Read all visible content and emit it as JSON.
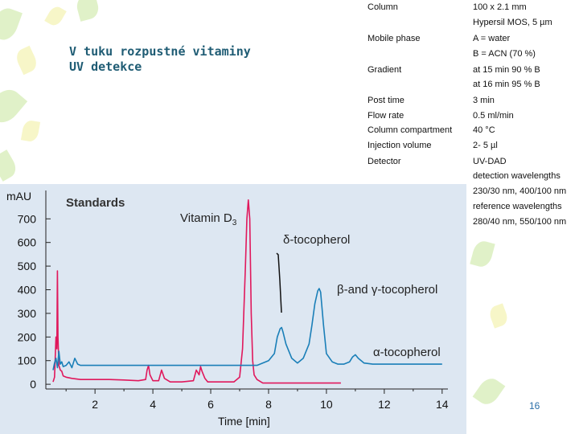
{
  "slide": {
    "title_line1": "V tuku rozpustné vitaminy",
    "title_line2": "UV detekce",
    "page_number": "16"
  },
  "parameters": [
    {
      "name": "Column",
      "value": "100 x 2.1 mm"
    },
    {
      "name": "",
      "value": "Hypersil MOS, 5 µm"
    },
    {
      "name": "Mobile phase",
      "value": "A = water"
    },
    {
      "name": "",
      "value": "B = ACN (70 %)"
    },
    {
      "name": "Gradient",
      "value": "at 15 min 90 % B"
    },
    {
      "name": "",
      "value": "at 16 min 95 % B"
    },
    {
      "name": "Post time",
      "value": "3 min"
    },
    {
      "name": "Flow rate",
      "value": "0.5 ml/min"
    },
    {
      "name": "Column compartment",
      "value": "40 °C"
    },
    {
      "name": "Injection volume",
      "value": "2- 5 µl"
    },
    {
      "name": "Detector",
      "value": "UV-DAD"
    },
    {
      "name": "",
      "value": "detection wavelengths"
    },
    {
      "name": "",
      "value": "230/30 nm, 400/100 nm"
    },
    {
      "name": "",
      "value": "reference wavelengths"
    },
    {
      "name": "",
      "value": "280/40 nm, 550/100 nm"
    }
  ],
  "colors": {
    "title": "#1f5c74",
    "panel_bg": "#dde7f2",
    "standards_trace": "#e0185c",
    "sample_trace": "#1a7fb8",
    "axis": "#222222",
    "decor_green": "#c7e59a",
    "decor_yellow": "#f1ee9a"
  },
  "chart_data": {
    "type": "line",
    "ylabel": "mAU",
    "xlabel": "Time [min]",
    "xlim": [
      0.3,
      14.2
    ],
    "ylim": [
      -20,
      820
    ],
    "x_ticks": [
      2,
      4,
      6,
      8,
      10,
      12,
      14
    ],
    "y_ticks": [
      0,
      100,
      200,
      300,
      400,
      500,
      600,
      700
    ],
    "panel_label": "Standards",
    "annotations": [
      {
        "text": "Vitamin D",
        "subscript": "3",
        "x": 7.3,
        "y": 760
      },
      {
        "text": "δ-tocopherol",
        "x": 8.4,
        "y": 630
      },
      {
        "text": "β-and γ-tocopherol",
        "x": 9.8,
        "y": 400
      },
      {
        "text": "α-tocopherol",
        "x": 11.0,
        "y": 115
      }
    ],
    "series": [
      {
        "color": "#e0185c",
        "x": [
          0.55,
          0.6,
          0.65,
          0.68,
          0.7,
          0.72,
          0.75,
          0.8,
          0.85,
          0.9,
          1.0,
          1.2,
          1.5,
          2.0,
          2.5,
          3.0,
          3.5,
          3.75,
          3.8,
          3.85,
          3.9,
          4.0,
          4.2,
          4.3,
          4.4,
          4.6,
          5.0,
          5.4,
          5.5,
          5.6,
          5.65,
          5.7,
          5.8,
          5.9,
          6.0,
          6.5,
          6.8,
          7.0,
          7.1,
          7.2,
          7.25,
          7.3,
          7.35,
          7.4,
          7.45,
          7.5,
          7.6,
          7.8,
          8.0,
          8.5,
          9.0,
          10.0,
          10.5
        ],
        "y": [
          10,
          30,
          200,
          150,
          480,
          200,
          80,
          60,
          55,
          35,
          30,
          25,
          20,
          20,
          20,
          18,
          15,
          20,
          60,
          80,
          40,
          15,
          15,
          60,
          25,
          10,
          10,
          15,
          60,
          40,
          75,
          55,
          25,
          10,
          10,
          10,
          10,
          30,
          150,
          500,
          700,
          780,
          700,
          300,
          100,
          40,
          20,
          5,
          5,
          5,
          5,
          5,
          5
        ]
      },
      {
        "color": "#1a7fb8",
        "x": [
          0.55,
          0.6,
          0.65,
          0.7,
          0.75,
          0.8,
          0.85,
          0.9,
          1.0,
          1.1,
          1.2,
          1.3,
          1.4,
          1.5,
          1.8,
          2.5,
          3.5,
          4.5,
          5.5,
          6.5,
          7.0,
          7.3,
          7.6,
          8.0,
          8.2,
          8.3,
          8.4,
          8.45,
          8.5,
          8.6,
          8.8,
          9.0,
          9.2,
          9.4,
          9.5,
          9.6,
          9.7,
          9.75,
          9.8,
          9.9,
          10.0,
          10.2,
          10.4,
          10.6,
          10.8,
          10.9,
          11.0,
          11.1,
          11.3,
          11.6,
          12.0,
          13.0,
          14.0
        ],
        "y": [
          60,
          90,
          110,
          70,
          140,
          85,
          95,
          75,
          80,
          95,
          70,
          110,
          85,
          80,
          80,
          80,
          80,
          80,
          80,
          80,
          80,
          80,
          80,
          100,
          130,
          200,
          235,
          240,
          220,
          170,
          110,
          90,
          110,
          170,
          250,
          340,
          395,
          405,
          390,
          250,
          130,
          95,
          85,
          85,
          95,
          115,
          125,
          110,
          90,
          85,
          85,
          85,
          85
        ]
      }
    ]
  }
}
